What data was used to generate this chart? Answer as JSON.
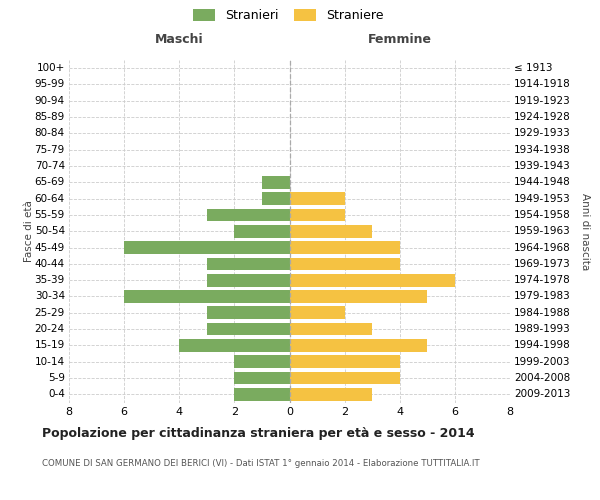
{
  "age_groups": [
    "0-4",
    "5-9",
    "10-14",
    "15-19",
    "20-24",
    "25-29",
    "30-34",
    "35-39",
    "40-44",
    "45-49",
    "50-54",
    "55-59",
    "60-64",
    "65-69",
    "70-74",
    "75-79",
    "80-84",
    "85-89",
    "90-94",
    "95-99",
    "100+"
  ],
  "birth_years": [
    "2009-2013",
    "2004-2008",
    "1999-2003",
    "1994-1998",
    "1989-1993",
    "1984-1988",
    "1979-1983",
    "1974-1978",
    "1969-1973",
    "1964-1968",
    "1959-1963",
    "1954-1958",
    "1949-1953",
    "1944-1948",
    "1939-1943",
    "1934-1938",
    "1929-1933",
    "1924-1928",
    "1919-1923",
    "1914-1918",
    "≤ 1913"
  ],
  "maschi": [
    2,
    2,
    2,
    4,
    3,
    3,
    6,
    3,
    3,
    6,
    2,
    3,
    1,
    1,
    0,
    0,
    0,
    0,
    0,
    0,
    0
  ],
  "femmine": [
    3,
    4,
    4,
    5,
    3,
    2,
    5,
    6,
    4,
    4,
    3,
    2,
    2,
    0,
    0,
    0,
    0,
    0,
    0,
    0,
    0
  ],
  "male_color": "#7aab5f",
  "female_color": "#f5c242",
  "background_color": "#ffffff",
  "grid_color": "#cccccc",
  "title": "Popolazione per cittadinanza straniera per età e sesso - 2014",
  "subtitle": "COMUNE DI SAN GERMANO DEI BERICI (VI) - Dati ISTAT 1° gennaio 2014 - Elaborazione TUTTITALIA.IT",
  "ylabel_left": "Fasce di età",
  "ylabel_right": "Anni di nascita",
  "xlabel_left": "Maschi",
  "xlabel_right": "Femmine",
  "legend_male": "Stranieri",
  "legend_female": "Straniere",
  "xlim": 8
}
